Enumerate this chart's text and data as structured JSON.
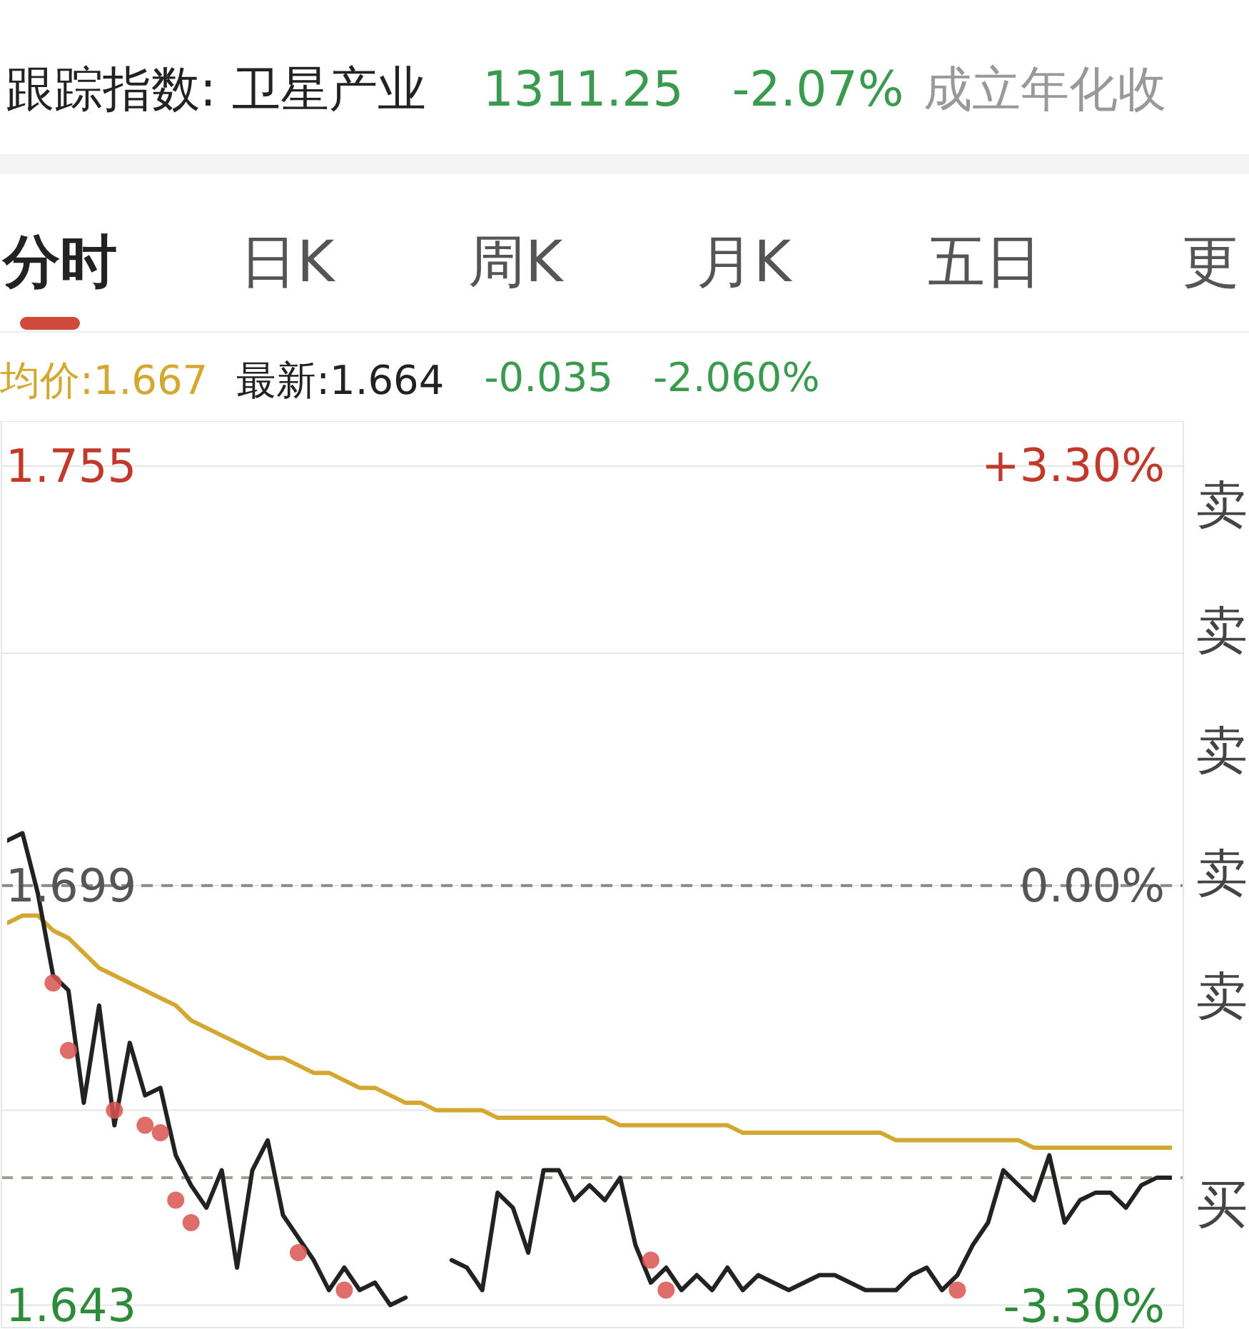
{
  "chart_data": {
    "type": "line",
    "title": "跟踪指数: 卫星产业",
    "annotations": [
      "1311.25",
      "-2.07%",
      "成立年化收",
      "分时",
      "日K",
      "周K",
      "月K",
      "五日",
      "更",
      "-0.035",
      "-2.060%",
      "卖",
      "卖",
      "卖",
      "卖",
      "卖",
      "买"
    ],
    "categories": [
      null,
      null,
      null,
      null,
      null,
      null,
      null,
      null,
      null,
      null,
      null,
      null,
      null,
      null,
      null,
      null,
      null,
      null,
      null,
      null,
      null,
      null,
      null,
      null,
      null,
      null,
      null,
      null,
      null,
      null,
      null,
      null,
      null,
      null,
      null,
      null,
      null,
      null,
      null,
      null,
      null,
      null,
      null,
      null,
      null,
      null,
      null,
      null,
      null,
      null,
      null,
      null,
      null,
      null,
      null,
      null,
      null,
      null,
      null,
      null,
      null,
      null,
      null,
      null,
      null,
      null,
      null,
      null,
      null,
      null,
      null,
      null,
      null,
      null,
      null,
      null,
      null
    ],
    "ylim": [
      1.64,
      1.761
    ],
    "yticks": [
      {
        "value": 1.643,
        "label": "1.643"
      },
      {
        "value": 1.669,
        "label": null
      },
      {
        "value": 1.699,
        "label": "1.699"
      },
      {
        "value": 1.73,
        "label": null
      },
      {
        "value": 1.755,
        "label": "1.755"
      }
    ],
    "y2lim": [
      -3.47,
      3.65
    ],
    "y2ticks": [
      {
        "value": -3.3,
        "label": "-3.30%"
      },
      {
        "value": 0,
        "label": "0.00%"
      },
      {
        "value": 3.3,
        "label": "+3.30%"
      }
    ],
    "grid": "y",
    "legend": "top left",
    "tick_labels": "y",
    "marker": "none",
    "line_style": "solid",
    "ref_lines": [
      {
        "axis": "y",
        "value": 1.699,
        "color": "#888888",
        "line_style": "dashed"
      },
      {
        "axis": "y",
        "value": 1.66,
        "color": "#a0a090",
        "line_style": "dashed"
      }
    ],
    "series": [
      {
        "name": "均价:1.667",
        "color": "#d4a830",
        "values": [
          1.694,
          1.695,
          1.695,
          1.693,
          1.692,
          1.69,
          1.688,
          1.687,
          1.686,
          1.685,
          1.684,
          1.683,
          1.681,
          1.68,
          1.679,
          1.678,
          1.677,
          1.676,
          1.676,
          1.675,
          1.674,
          1.674,
          1.673,
          1.672,
          1.672,
          1.671,
          1.67,
          1.67,
          1.669,
          1.669,
          1.669,
          1.669,
          1.668,
          1.668,
          1.668,
          1.668,
          1.668,
          1.668,
          1.668,
          1.668,
          1.667,
          1.667,
          1.667,
          1.667,
          1.667,
          1.667,
          1.667,
          1.667,
          1.666,
          1.666,
          1.666,
          1.666,
          1.666,
          1.666,
          1.666,
          1.666,
          1.666,
          1.666,
          1.665,
          1.665,
          1.665,
          1.665,
          1.665,
          1.665,
          1.665,
          1.665,
          1.665,
          1.664,
          1.664,
          1.664,
          1.664,
          1.664,
          1.664,
          1.664,
          1.664,
          1.664,
          1.664
        ]
      },
      {
        "name": "最新:1.664",
        "color": "#222222",
        "values": [
          1.705,
          1.706,
          1.698,
          1.687,
          1.685,
          1.67,
          1.683,
          1.667,
          1.678,
          1.671,
          1.672,
          1.663,
          1.659,
          1.656,
          1.661,
          1.648,
          1.661,
          1.665,
          1.655,
          1.652,
          1.649,
          1.645,
          1.648,
          1.645,
          1.646,
          1.643,
          1.644,
          null,
          null,
          1.649,
          1.648,
          1.645,
          1.658,
          1.656,
          1.65,
          1.661,
          1.661,
          1.657,
          1.659,
          1.657,
          1.66,
          1.651,
          1.646,
          1.648,
          1.645,
          1.647,
          1.645,
          1.648,
          1.645,
          1.647,
          1.646,
          1.645,
          1.646,
          1.647,
          1.647,
          1.646,
          1.645,
          1.645,
          1.645,
          1.647,
          1.648,
          1.645,
          1.647,
          1.651,
          1.654,
          1.661,
          1.659,
          1.657,
          1.663,
          1.654,
          1.657,
          1.658,
          1.658,
          1.656,
          1.659,
          1.66,
          1.66
        ]
      },
      {
        "type": "scatter",
        "color": "#d9534f",
        "marker": "circle",
        "values": [
          null,
          null,
          null,
          1.686,
          1.677,
          null,
          null,
          1.669,
          null,
          1.667,
          1.666,
          1.657,
          1.654,
          null,
          null,
          null,
          null,
          null,
          null,
          1.65,
          null,
          null,
          1.645,
          null,
          null,
          null,
          null,
          null,
          null,
          null,
          null,
          null,
          null,
          null,
          null,
          null,
          null,
          null,
          null,
          null,
          null,
          null,
          1.649,
          1.645,
          null,
          null,
          null,
          null,
          null,
          null,
          null,
          null,
          null,
          null,
          null,
          null,
          null,
          null,
          null,
          null,
          null,
          null,
          1.645,
          null,
          null,
          null,
          null,
          null,
          null,
          null,
          null,
          null,
          null,
          null,
          null,
          null,
          null
        ]
      }
    ]
  }
}
